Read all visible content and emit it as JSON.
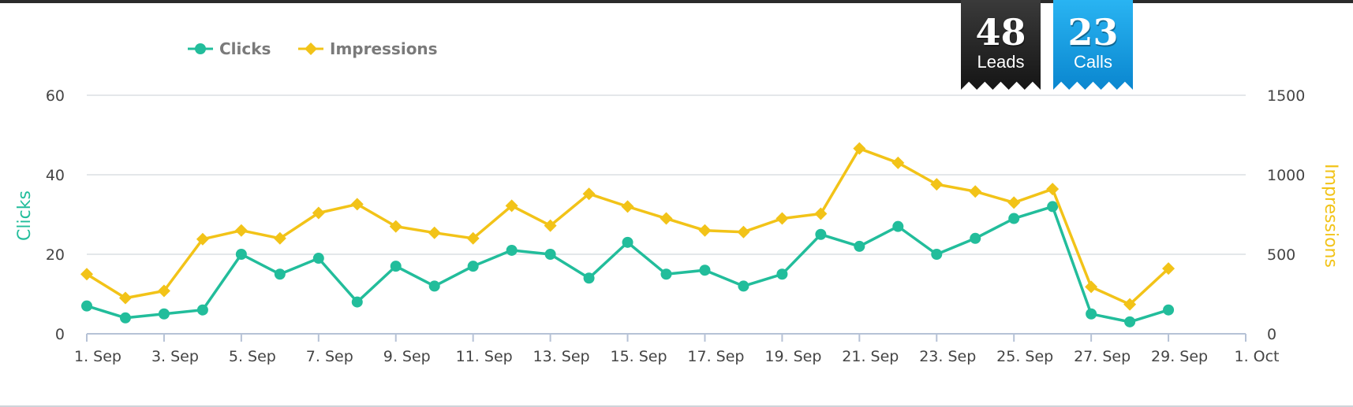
{
  "badges": {
    "leads": {
      "count": "48",
      "label": "Leads"
    },
    "calls": {
      "count": "23",
      "label": "Calls"
    }
  },
  "colors": {
    "clicks": "#22bd9b",
    "impressions": "#f2c318",
    "grid": "#dcdfe3",
    "axis_text": "#444444",
    "legend_text": "#7a7a7a"
  },
  "chart_data": {
    "type": "line",
    "title": "",
    "legend": {
      "placement": "top-left",
      "entries": [
        "Clicks",
        "Impressions"
      ]
    },
    "x_tick_labels": [
      "1. Sep",
      "3. Sep",
      "5. Sep",
      "7. Sep",
      "9. Sep",
      "11. Sep",
      "13. Sep",
      "15. Sep",
      "17. Sep",
      "19. Sep",
      "21. Sep",
      "23. Sep",
      "25. Sep",
      "27. Sep",
      "29. Sep",
      "1. Oct"
    ],
    "xlim": [
      "1. Sep",
      "1. Oct"
    ],
    "x": [
      "1. Sep",
      "2. Sep",
      "3. Sep",
      "4. Sep",
      "5. Sep",
      "6. Sep",
      "7. Sep",
      "8. Sep",
      "9. Sep",
      "10. Sep",
      "11. Sep",
      "12. Sep",
      "13. Sep",
      "14. Sep",
      "15. Sep",
      "16. Sep",
      "17. Sep",
      "18. Sep",
      "19. Sep",
      "20. Sep",
      "21. Sep",
      "22. Sep",
      "23. Sep",
      "24. Sep",
      "25. Sep",
      "26. Sep",
      "27. Sep",
      "28. Sep",
      "29. Sep"
    ],
    "y_left": {
      "label": "Clicks",
      "ylim": [
        0,
        60
      ],
      "ticks": [
        "0",
        "20",
        "40",
        "60"
      ]
    },
    "y_right": {
      "label": "Impressions",
      "ylim": [
        0,
        1500
      ],
      "ticks": [
        "0",
        "500",
        "1000",
        "1500"
      ]
    },
    "grid": true,
    "series": [
      {
        "name": "Clicks",
        "axis": "left",
        "marker": "circle",
        "values": [
          7,
          4,
          5,
          6,
          20,
          15,
          19,
          8,
          17,
          12,
          17,
          21,
          20,
          14,
          23,
          15,
          16,
          12,
          15,
          25,
          22,
          27,
          20,
          24,
          29,
          32,
          5,
          3,
          6
        ]
      },
      {
        "name": "Impressions",
        "axis": "right",
        "marker": "diamond",
        "values": [
          375,
          225,
          270,
          595,
          650,
          600,
          760,
          815,
          675,
          635,
          600,
          805,
          680,
          880,
          800,
          725,
          650,
          640,
          725,
          755,
          1165,
          1075,
          940,
          895,
          825,
          910,
          295,
          185,
          410
        ]
      }
    ]
  }
}
